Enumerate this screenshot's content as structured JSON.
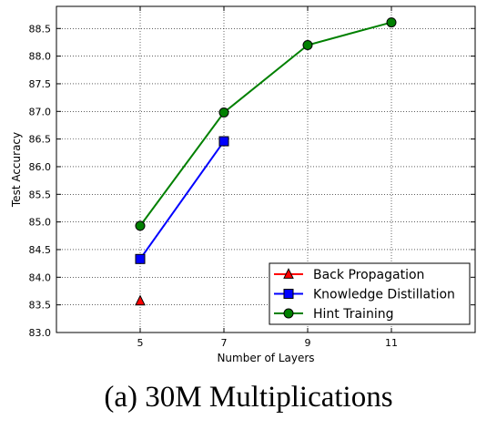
{
  "caption": "(a) 30M Multiplications",
  "chart_data": {
    "type": "line",
    "title": "",
    "xlabel": "Number of Layers",
    "ylabel": "Test Accuracy",
    "xlim": [
      3,
      13
    ],
    "ylim": [
      83.0,
      88.9
    ],
    "xticks": [
      5,
      7,
      9,
      11
    ],
    "xtick_labels": [
      "5",
      "7",
      "9",
      "11"
    ],
    "yticks": [
      83.0,
      83.5,
      84.0,
      84.5,
      85.0,
      85.5,
      86.0,
      86.5,
      87.0,
      87.5,
      88.0,
      88.5
    ],
    "ytick_labels": [
      "83.0",
      "83.5",
      "84.0",
      "84.5",
      "85.0",
      "85.5",
      "86.0",
      "86.5",
      "87.0",
      "87.5",
      "88.0",
      "88.5"
    ],
    "grid": true,
    "legend_position": "bottom-right",
    "series": [
      {
        "name": "Back Propagation",
        "color": "#ff0000",
        "marker": "triangle",
        "x": [
          5
        ],
        "y": [
          83.57
        ]
      },
      {
        "name": "Knowledge Distillation",
        "color": "#0000ff",
        "marker": "square",
        "x": [
          5,
          7
        ],
        "y": [
          84.33,
          86.46
        ]
      },
      {
        "name": "Hint Training",
        "color": "#008000",
        "marker": "circle",
        "x": [
          5,
          7,
          9,
          11
        ],
        "y": [
          84.93,
          86.98,
          88.2,
          88.61
        ]
      }
    ]
  }
}
